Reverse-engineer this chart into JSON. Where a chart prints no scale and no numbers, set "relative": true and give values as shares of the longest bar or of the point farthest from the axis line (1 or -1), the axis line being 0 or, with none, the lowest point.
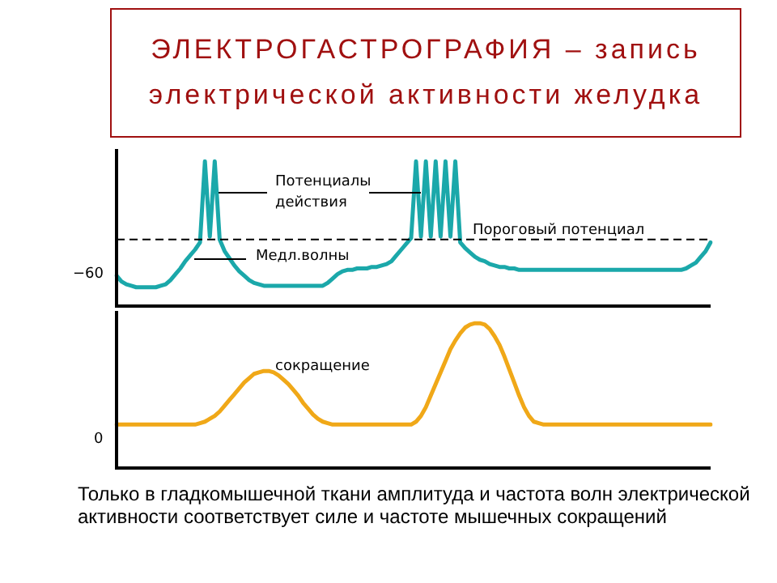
{
  "chart_data": [
    {
      "type": "line",
      "title": "ЭЛЕКТРОГАСТРОГРАФИЯ – запись электрической активности желудка",
      "relative": true,
      "categories": [
        null,
        null,
        null,
        null,
        null,
        null,
        null,
        null,
        null,
        null,
        null,
        null,
        null,
        null,
        null,
        null,
        null,
        null,
        null,
        null,
        null,
        null,
        null,
        null,
        null,
        null,
        null,
        null,
        null,
        null,
        null,
        null,
        null,
        null,
        null,
        null,
        null,
        null,
        null,
        null,
        null,
        null,
        null,
        null,
        null,
        null,
        null,
        null,
        null,
        null,
        null,
        null,
        null,
        null,
        null,
        null,
        null,
        null,
        null,
        null,
        null,
        null,
        null,
        null,
        null,
        null,
        null,
        null,
        null,
        null,
        null,
        null,
        null,
        null,
        null,
        null,
        null,
        null,
        null,
        null,
        null,
        null,
        null,
        null,
        null,
        null,
        null,
        null,
        null,
        null,
        null,
        null,
        null,
        null,
        null,
        null,
        null,
        null,
        null,
        null,
        null,
        null,
        null,
        null,
        null,
        null,
        null,
        null,
        null,
        null,
        null,
        null,
        null,
        null,
        null,
        null,
        null,
        null,
        null,
        null,
        null,
        null
      ],
      "series": [
        {
          "color": "#1ba8aa",
          "values": [
            0.21,
            0.17,
            0.15,
            0.14,
            0.13,
            0.13,
            0.13,
            0.13,
            0.13,
            0.14,
            0.15,
            0.18,
            0.22,
            0.26,
            0.31,
            0.35,
            0.39,
            0.44,
            1.0,
            0.48,
            1.0,
            0.46,
            0.38,
            0.33,
            0.28,
            0.24,
            0.21,
            0.18,
            0.16,
            0.15,
            0.14,
            0.14,
            0.14,
            0.14,
            0.14,
            0.14,
            0.14,
            0.14,
            0.14,
            0.14,
            0.14,
            0.14,
            0.14,
            0.16,
            0.19,
            0.22,
            0.24,
            0.25,
            0.25,
            0.26,
            0.26,
            0.26,
            0.27,
            0.27,
            0.28,
            0.29,
            0.31,
            0.35,
            0.39,
            0.43,
            0.47,
            1.0,
            0.48,
            1.0,
            0.48,
            1.0,
            0.48,
            1.0,
            0.48,
            1.0,
            0.44,
            0.4,
            0.37,
            0.34,
            0.32,
            0.31,
            0.29,
            0.28,
            0.27,
            0.27,
            0.26,
            0.26,
            0.25,
            0.25,
            0.25,
            0.25,
            0.25,
            0.25,
            0.25,
            0.25,
            0.25,
            0.25,
            0.25,
            0.25,
            0.25,
            0.25,
            0.25,
            0.25,
            0.25,
            0.25,
            0.25,
            0.25,
            0.25,
            0.25,
            0.25,
            0.25,
            0.25,
            0.25,
            0.25,
            0.25,
            0.25,
            0.25,
            0.25,
            0.25,
            0.25,
            0.25,
            0.26,
            0.28,
            0.3,
            0.34,
            0.38,
            0.44
          ]
        }
      ],
      "ref_lines": [
        {
          "axis": "y",
          "value": 0.46,
          "label": "Пороговый потенциал",
          "color": "#000000",
          "line_style": "dashed"
        }
      ],
      "annotations": [
        "Потенциалы действия",
        "Медл.волны",
        "−60"
      ]
    },
    {
      "type": "line",
      "relative": true,
      "categories": [
        null,
        null,
        null,
        null,
        null,
        null,
        null,
        null,
        null,
        null,
        null,
        null,
        null,
        null,
        null,
        null,
        null,
        null,
        null,
        null,
        null,
        null,
        null,
        null,
        null,
        null,
        null,
        null,
        null,
        null,
        null,
        null,
        null,
        null,
        null,
        null,
        null,
        null,
        null,
        null,
        null,
        null,
        null,
        null,
        null,
        null,
        null,
        null,
        null,
        null,
        null,
        null,
        null,
        null,
        null,
        null,
        null,
        null,
        null,
        null,
        null,
        null,
        null,
        null,
        null,
        null,
        null,
        null,
        null,
        null,
        null,
        null,
        null,
        null,
        null,
        null,
        null,
        null,
        null,
        null,
        null,
        null,
        null,
        null,
        null,
        null,
        null,
        null,
        null,
        null,
        null,
        null,
        null,
        null,
        null,
        null,
        null,
        null,
        null,
        null,
        null,
        null,
        null,
        null,
        null,
        null,
        null,
        null,
        null,
        null,
        null,
        null,
        null,
        null,
        null,
        null,
        null,
        null,
        null,
        null,
        null,
        null
      ],
      "series": [
        {
          "color": "#f0a818",
          "values": [
            0.3,
            0.3,
            0.3,
            0.3,
            0.3,
            0.3,
            0.3,
            0.3,
            0.3,
            0.3,
            0.3,
            0.3,
            0.3,
            0.3,
            0.3,
            0.3,
            0.3,
            0.31,
            0.32,
            0.34,
            0.36,
            0.39,
            0.43,
            0.47,
            0.51,
            0.55,
            0.59,
            0.62,
            0.65,
            0.66,
            0.67,
            0.67,
            0.66,
            0.64,
            0.61,
            0.58,
            0.54,
            0.5,
            0.45,
            0.41,
            0.37,
            0.34,
            0.32,
            0.31,
            0.3,
            0.3,
            0.3,
            0.3,
            0.3,
            0.3,
            0.3,
            0.3,
            0.3,
            0.3,
            0.3,
            0.3,
            0.3,
            0.3,
            0.3,
            0.3,
            0.3,
            0.32,
            0.36,
            0.42,
            0.5,
            0.58,
            0.66,
            0.74,
            0.82,
            0.88,
            0.93,
            0.97,
            0.99,
            1.0,
            1.0,
            0.99,
            0.96,
            0.91,
            0.85,
            0.77,
            0.68,
            0.59,
            0.5,
            0.42,
            0.36,
            0.32,
            0.31,
            0.3,
            0.3,
            0.3,
            0.3,
            0.3,
            0.3,
            0.3,
            0.3,
            0.3,
            0.3,
            0.3,
            0.3,
            0.3,
            0.3,
            0.3,
            0.3,
            0.3,
            0.3,
            0.3,
            0.3,
            0.3,
            0.3,
            0.3,
            0.3,
            0.3,
            0.3,
            0.3,
            0.3,
            0.3,
            0.3,
            0.3,
            0.3,
            0.3,
            0.3,
            0.3
          ]
        }
      ],
      "annotations": [
        "сокращение",
        "0",
        "Только в гладкомышечной ткани амплитуда и частота волн электрической активности соответствует силе и частоте мышечных сокращений"
      ]
    }
  ]
}
